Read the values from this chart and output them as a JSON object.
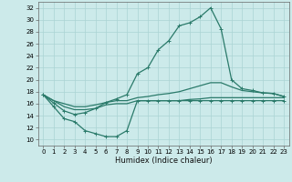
{
  "xlabel": "Humidex (Indice chaleur)",
  "ylabel": "",
  "background_color": "#cceaea",
  "grid_color": "#aad4d4",
  "line_color": "#2a7a6a",
  "xlim": [
    -0.5,
    23.5
  ],
  "ylim": [
    9,
    33
  ],
  "yticks": [
    10,
    12,
    14,
    16,
    18,
    20,
    22,
    24,
    26,
    28,
    30,
    32
  ],
  "xticks": [
    0,
    1,
    2,
    3,
    4,
    5,
    6,
    7,
    8,
    9,
    10,
    11,
    12,
    13,
    14,
    15,
    16,
    17,
    18,
    19,
    20,
    21,
    22,
    23
  ],
  "line1_x": [
    0,
    1,
    2,
    3,
    4,
    5,
    6,
    7,
    8,
    9,
    10,
    11,
    12,
    13,
    14,
    15,
    16,
    17,
    18,
    19,
    20,
    21,
    22,
    23
  ],
  "line1_y": [
    17.5,
    16.1,
    14.8,
    14.2,
    14.5,
    15.2,
    16.2,
    16.8,
    17.5,
    21.0,
    22.0,
    25.0,
    26.5,
    29.0,
    29.5,
    30.5,
    32.0,
    28.5,
    20.0,
    18.5,
    18.2,
    17.8,
    17.7,
    17.2
  ],
  "line2_x": [
    0,
    1,
    2,
    3,
    4,
    5,
    6,
    7,
    8,
    9,
    10,
    11,
    12,
    13,
    14,
    15,
    16,
    17,
    18,
    19,
    20,
    21,
    22,
    23
  ],
  "line2_y": [
    17.5,
    16.5,
    16.0,
    15.5,
    15.5,
    15.8,
    16.2,
    16.5,
    16.5,
    17.0,
    17.2,
    17.5,
    17.7,
    18.0,
    18.5,
    19.0,
    19.5,
    19.5,
    18.8,
    18.2,
    18.0,
    17.8,
    17.7,
    17.2
  ],
  "line3_x": [
    0,
    1,
    2,
    3,
    4,
    5,
    6,
    7,
    8,
    9,
    10,
    11,
    12,
    13,
    14,
    15,
    16,
    17,
    18,
    19,
    20,
    21,
    22,
    23
  ],
  "line3_y": [
    17.5,
    15.5,
    13.5,
    13.0,
    11.5,
    11.0,
    10.5,
    10.5,
    11.5,
    16.5,
    16.5,
    16.5,
    16.5,
    16.5,
    16.5,
    16.5,
    16.5,
    16.5,
    16.5,
    16.5,
    16.5,
    16.5,
    16.5,
    16.5
  ],
  "line4_x": [
    0,
    1,
    2,
    3,
    4,
    5,
    6,
    7,
    8,
    9,
    10,
    11,
    12,
    13,
    14,
    15,
    16,
    17,
    18,
    19,
    20,
    21,
    22,
    23
  ],
  "line4_y": [
    17.5,
    16.5,
    15.5,
    15.0,
    15.0,
    15.2,
    15.8,
    16.0,
    16.0,
    16.5,
    16.5,
    16.5,
    16.5,
    16.5,
    16.7,
    16.8,
    17.0,
    17.0,
    17.0,
    17.0,
    17.0,
    17.0,
    17.0,
    17.0
  ]
}
